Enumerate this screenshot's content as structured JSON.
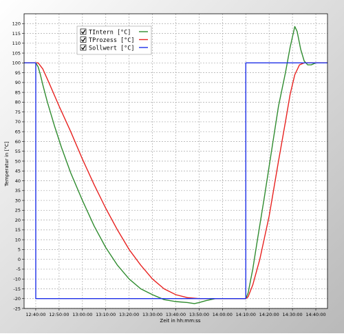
{
  "chart_data": {
    "type": "line",
    "title": "",
    "xlabel": "Zeit in hh:mm:ss",
    "ylabel": "Temperatur in [°C]",
    "x_unit": "time of day (hh:mm:ss)",
    "xlim": [
      "12:35:00",
      "14:45:00"
    ],
    "ylim": [
      -25,
      125
    ],
    "grid": true,
    "x_ticks": [
      "12:40:00",
      "12:50:00",
      "13:00:00",
      "13:10:00",
      "13:20:00",
      "13:30:00",
      "13:40:00",
      "13:50:00",
      "14:00:00",
      "14:10:00",
      "14:20:00",
      "14:30:00",
      "14:40:00"
    ],
    "y_ticks": [
      -25,
      -20,
      -15,
      -10,
      -5,
      0,
      5,
      10,
      15,
      20,
      25,
      30,
      35,
      40,
      45,
      50,
      55,
      60,
      65,
      70,
      75,
      80,
      85,
      90,
      95,
      100,
      105,
      110,
      115,
      120
    ],
    "legend_position": "top-left",
    "series": [
      {
        "name": "TIntern [°C]",
        "color": "#2e8b2e",
        "points": [
          [
            "12:35:00",
            100
          ],
          [
            "12:40:00",
            100
          ],
          [
            "12:41:00",
            98
          ],
          [
            "12:42:00",
            94
          ],
          [
            "12:43:00",
            89
          ],
          [
            "12:45:00",
            80
          ],
          [
            "12:48:00",
            68
          ],
          [
            "12:51:00",
            57
          ],
          [
            "12:55:00",
            44
          ],
          [
            "13:00:00",
            30
          ],
          [
            "13:05:00",
            17
          ],
          [
            "13:10:00",
            6
          ],
          [
            "13:15:00",
            -3
          ],
          [
            "13:20:00",
            -10
          ],
          [
            "13:25:00",
            -15
          ],
          [
            "13:30:00",
            -18
          ],
          [
            "13:35:00",
            -20.5
          ],
          [
            "13:40:00",
            -21.5
          ],
          [
            "13:45:00",
            -22
          ],
          [
            "13:48:00",
            -22.5
          ],
          [
            "13:50:00",
            -22
          ],
          [
            "13:53:00",
            -21
          ],
          [
            "13:57:00",
            -20
          ],
          [
            "14:10:00",
            -20
          ],
          [
            "14:11:00",
            -17
          ],
          [
            "14:13:00",
            -5
          ],
          [
            "14:15:00",
            10
          ],
          [
            "14:18:00",
            32
          ],
          [
            "14:21:00",
            55
          ],
          [
            "14:24:00",
            78
          ],
          [
            "14:27:00",
            95
          ],
          [
            "14:29:00",
            108
          ],
          [
            "14:31:00",
            118.5
          ],
          [
            "14:32:00",
            116
          ],
          [
            "14:33:30",
            107
          ],
          [
            "14:35:00",
            101
          ],
          [
            "14:36:30",
            99
          ],
          [
            "14:38:00",
            99
          ],
          [
            "14:40:00",
            100
          ],
          [
            "14:45:00",
            100
          ]
        ]
      },
      {
        "name": "TProzess [°C]",
        "color": "#e8201e",
        "points": [
          [
            "12:35:00",
            100
          ],
          [
            "12:41:00",
            100
          ],
          [
            "12:43:00",
            97
          ],
          [
            "12:46:00",
            89
          ],
          [
            "12:50:00",
            78
          ],
          [
            "12:55:00",
            65
          ],
          [
            "13:00:00",
            51
          ],
          [
            "13:05:00",
            38
          ],
          [
            "13:10:00",
            26
          ],
          [
            "13:15:00",
            15
          ],
          [
            "13:20:00",
            5
          ],
          [
            "13:25:00",
            -3
          ],
          [
            "13:30:00",
            -10
          ],
          [
            "13:35:00",
            -15
          ],
          [
            "13:40:00",
            -18
          ],
          [
            "13:45:00",
            -19.5
          ],
          [
            "13:50:00",
            -20
          ],
          [
            "14:10:00",
            -20
          ],
          [
            "14:11:00",
            -19
          ],
          [
            "14:13:00",
            -13
          ],
          [
            "14:16:00",
            0
          ],
          [
            "14:20:00",
            22
          ],
          [
            "14:24:00",
            50
          ],
          [
            "14:27:00",
            70
          ],
          [
            "14:29:00",
            84
          ],
          [
            "14:31:00",
            94
          ],
          [
            "14:33:00",
            99
          ],
          [
            "14:35:00",
            100
          ],
          [
            "14:45:00",
            100
          ]
        ]
      },
      {
        "name": "Sollwert [°C]",
        "color": "#1c2ee8",
        "points": [
          [
            "12:35:00",
            100
          ],
          [
            "12:40:00",
            100
          ],
          [
            "12:40:00",
            -20
          ],
          [
            "14:10:00",
            -20
          ],
          [
            "14:10:00",
            100
          ],
          [
            "14:45:00",
            100
          ]
        ]
      }
    ]
  }
}
